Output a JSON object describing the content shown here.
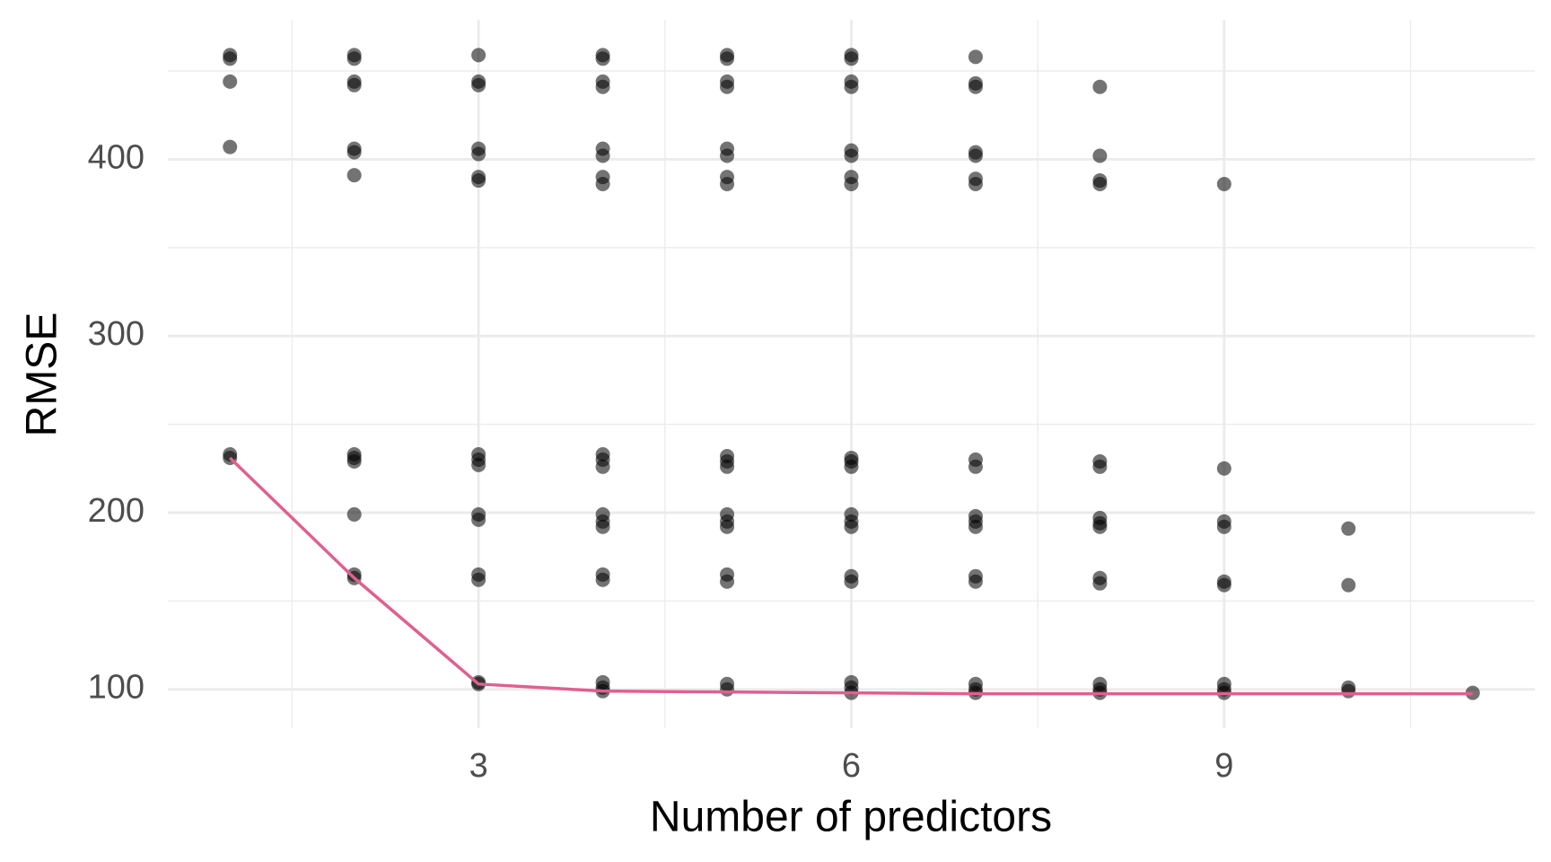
{
  "chart_data": {
    "type": "scatter",
    "xlabel": "Number of predictors",
    "ylabel": "RMSE",
    "xlim": [
      0.5,
      11.5
    ],
    "ylim": [
      78,
      479
    ],
    "xticks": [
      3,
      6,
      9
    ],
    "yticks": [
      100,
      200,
      300,
      400
    ],
    "xminor": [
      1.5,
      4.5,
      7.5,
      10.5
    ],
    "yminor": [
      150,
      250,
      350,
      450
    ],
    "grid": true,
    "series": [
      {
        "type": "scatter",
        "color": "#000000",
        "opacity": 0.55,
        "x": [
          1,
          1,
          1,
          1,
          1,
          1,
          2,
          2,
          2,
          2,
          2,
          2,
          2,
          2,
          2,
          2,
          2,
          2,
          2,
          3,
          3,
          3,
          3,
          3,
          3,
          3,
          3,
          3,
          3,
          3,
          3,
          3,
          3,
          3,
          3,
          4,
          4,
          4,
          4,
          4,
          4,
          4,
          4,
          4,
          4,
          4,
          4,
          4,
          4,
          4,
          4,
          4,
          4,
          4,
          5,
          5,
          5,
          5,
          5,
          5,
          5,
          5,
          5,
          5,
          5,
          5,
          5,
          5,
          5,
          5,
          5,
          5,
          6,
          6,
          6,
          6,
          6,
          6,
          6,
          6,
          6,
          6,
          6,
          6,
          6,
          6,
          6,
          6,
          6,
          6,
          6,
          7,
          7,
          7,
          7,
          7,
          7,
          7,
          7,
          7,
          7,
          7,
          7,
          7,
          7,
          7,
          7,
          7,
          8,
          8,
          8,
          8,
          8,
          8,
          8,
          8,
          8,
          8,
          8,
          8,
          8,
          8,
          9,
          9,
          9,
          9,
          9,
          9,
          9,
          9,
          9,
          10,
          10,
          10,
          10,
          11
        ],
        "values": [
          459,
          457,
          444,
          407,
          233,
          231,
          459,
          457,
          444,
          442,
          406,
          404,
          391,
          233,
          231,
          229,
          199,
          165,
          163,
          459,
          444,
          442,
          406,
          403,
          390,
          388,
          233,
          230,
          227,
          199,
          196,
          165,
          162,
          104,
          103,
          459,
          457,
          444,
          441,
          406,
          402,
          390,
          386,
          233,
          230,
          226,
          199,
          195,
          192,
          165,
          162,
          104,
          101,
          99,
          459,
          457,
          444,
          441,
          406,
          402,
          390,
          386,
          232,
          229,
          226,
          199,
          195,
          192,
          165,
          161,
          103,
          100,
          459,
          457,
          444,
          441,
          405,
          402,
          390,
          386,
          231,
          229,
          226,
          199,
          195,
          192,
          164,
          161,
          104,
          101,
          98,
          458,
          443,
          441,
          404,
          402,
          389,
          386,
          230,
          226,
          198,
          195,
          192,
          164,
          161,
          103,
          100,
          98,
          441,
          402,
          388,
          386,
          229,
          226,
          197,
          194,
          192,
          163,
          160,
          103,
          100,
          98,
          386,
          225,
          195,
          192,
          161,
          159,
          103,
          100,
          98,
          191,
          159,
          101,
          99,
          98
        ]
      },
      {
        "type": "line",
        "color": "#e0608f",
        "x": [
          1,
          2,
          3,
          4,
          5,
          6,
          7,
          8,
          9,
          10,
          11
        ],
        "values": [
          231,
          163,
          103,
          99,
          98.5,
          98,
          97.5,
          97.5,
          97.5,
          97.5,
          97.5
        ]
      }
    ]
  }
}
